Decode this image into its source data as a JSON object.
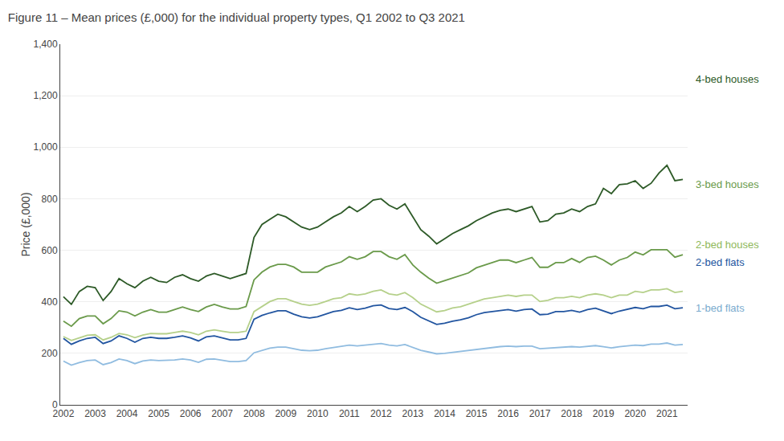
{
  "chart_data": {
    "type": "line",
    "title": "Figure 11 – Mean prices (£,000) for the individual property types, Q1 2002 to Q3 2021",
    "ylabel": "Price (£,000)",
    "x": [
      2002,
      2002.25,
      2002.5,
      2002.75,
      2003,
      2003.25,
      2003.5,
      2003.75,
      2004,
      2004.25,
      2004.5,
      2004.75,
      2005,
      2005.25,
      2005.5,
      2005.75,
      2006,
      2006.25,
      2006.5,
      2006.75,
      2007,
      2007.25,
      2007.5,
      2007.75,
      2008,
      2008.25,
      2008.5,
      2008.75,
      2009,
      2009.25,
      2009.5,
      2009.75,
      2010,
      2010.25,
      2010.5,
      2010.75,
      2011,
      2011.25,
      2011.5,
      2011.75,
      2012,
      2012.25,
      2012.5,
      2012.75,
      2013,
      2013.25,
      2013.5,
      2013.75,
      2014,
      2014.25,
      2014.5,
      2014.75,
      2015,
      2015.25,
      2015.5,
      2015.75,
      2016,
      2016.25,
      2016.5,
      2016.75,
      2017,
      2017.25,
      2017.5,
      2017.75,
      2018,
      2018.25,
      2018.5,
      2018.75,
      2019,
      2019.25,
      2019.5,
      2019.75,
      2020,
      2020.25,
      2020.5,
      2020.75,
      2021,
      2021.25,
      2021.5
    ],
    "series": [
      {
        "name": "1-bed flats",
        "color": "#90bce0",
        "values": [
          170,
          154,
          164,
          172,
          174,
          156,
          164,
          178,
          172,
          160,
          170,
          174,
          172,
          172,
          174,
          178,
          174,
          165,
          177,
          178,
          174,
          168,
          168,
          172,
          202,
          212,
          220,
          224,
          224,
          218,
          212,
          210,
          212,
          218,
          222,
          226,
          232,
          229,
          232,
          236,
          238,
          232,
          229,
          234,
          224,
          212,
          205,
          198,
          200,
          204,
          208,
          212,
          216,
          220,
          224,
          226,
          228,
          226,
          228,
          228,
          218,
          220,
          224,
          224,
          226,
          224,
          228,
          230,
          226,
          221,
          226,
          228,
          232,
          230,
          236,
          236,
          240,
          232,
          234
        ]
      },
      {
        "name": "2-bed flats",
        "color": "#2255a0",
        "values": [
          258,
          235,
          248,
          258,
          262,
          238,
          248,
          268,
          258,
          243,
          258,
          262,
          258,
          258,
          262,
          268,
          260,
          248,
          264,
          268,
          260,
          252,
          252,
          258,
          332,
          347,
          357,
          365,
          365,
          352,
          342,
          337,
          342,
          352,
          362,
          367,
          377,
          370,
          375,
          385,
          388,
          374,
          370,
          378,
          362,
          340,
          327,
          312,
          317,
          325,
          330,
          338,
          350,
          358,
          362,
          365,
          370,
          364,
          370,
          372,
          350,
          352,
          362,
          362,
          367,
          360,
          370,
          375,
          364,
          354,
          364,
          370,
          378,
          373,
          382,
          382,
          387,
          373,
          377
        ]
      },
      {
        "name": "2-bed houses",
        "color": "#b5d08a",
        "values": [
          265,
          250,
          260,
          270,
          272,
          252,
          262,
          277,
          272,
          261,
          271,
          277,
          276,
          276,
          281,
          286,
          281,
          272,
          286,
          291,
          286,
          281,
          281,
          286,
          362,
          381,
          401,
          412,
          412,
          401,
          391,
          386,
          391,
          401,
          412,
          416,
          431,
          426,
          431,
          441,
          446,
          431,
          426,
          436,
          416,
          391,
          376,
          361,
          366,
          376,
          381,
          391,
          401,
          411,
          416,
          421,
          426,
          421,
          426,
          426,
          401,
          406,
          416,
          416,
          421,
          416,
          426,
          431,
          426,
          416,
          426,
          426,
          441,
          436,
          446,
          446,
          451,
          436,
          441
        ]
      },
      {
        "name": "3-bed houses",
        "color": "#6a9a4a",
        "values": [
          325,
          305,
          335,
          345,
          345,
          315,
          335,
          365,
          360,
          345,
          360,
          370,
          360,
          360,
          370,
          380,
          370,
          362,
          380,
          390,
          380,
          372,
          372,
          382,
          485,
          515,
          535,
          545,
          545,
          535,
          515,
          515,
          515,
          535,
          545,
          555,
          575,
          565,
          575,
          595,
          595,
          575,
          565,
          583,
          543,
          515,
          492,
          472,
          482,
          492,
          502,
          512,
          532,
          542,
          552,
          562,
          562,
          552,
          562,
          572,
          534,
          534,
          552,
          552,
          568,
          553,
          572,
          577,
          562,
          543,
          562,
          572,
          593,
          582,
          602,
          602,
          602,
          573,
          583
        ]
      },
      {
        "name": "4-bed houses",
        "color": "#2d5a27",
        "values": [
          420,
          390,
          440,
          460,
          455,
          405,
          440,
          490,
          470,
          455,
          480,
          495,
          480,
          475,
          495,
          505,
          490,
          480,
          500,
          510,
          500,
          490,
          500,
          510,
          650,
          700,
          720,
          740,
          730,
          710,
          690,
          680,
          690,
          710,
          730,
          745,
          770,
          750,
          770,
          795,
          800,
          775,
          760,
          780,
          730,
          680,
          655,
          625,
          645,
          665,
          680,
          695,
          715,
          730,
          745,
          755,
          760,
          750,
          760,
          770,
          710,
          715,
          740,
          745,
          760,
          750,
          770,
          780,
          840,
          820,
          855,
          858,
          870,
          840,
          860,
          900,
          930,
          870,
          875
        ]
      }
    ],
    "annotations": [
      {
        "text": "4-bed houses",
        "y": 1265,
        "color": "#2d5a27"
      },
      {
        "text": "3-bed houses",
        "y": 855,
        "color": "#6a9a4a"
      },
      {
        "text": "2-bed houses",
        "y": 622,
        "color": "#8fb85a"
      },
      {
        "text": "2-bed flats",
        "y": 555,
        "color": "#2255a0"
      },
      {
        "text": "1-bed flats",
        "y": 375,
        "color": "#7aabce"
      }
    ],
    "xlim": [
      2001.9,
      2021.65
    ],
    "xticks": [
      2002,
      2003,
      2004,
      2005,
      2006,
      2007,
      2008,
      2009,
      2010,
      2011,
      2012,
      2013,
      2014,
      2015,
      2016,
      2017,
      2018,
      2019,
      2020,
      2021
    ],
    "ylim": [
      0,
      1400
    ],
    "yticks": [
      0,
      200,
      400,
      600,
      800,
      {
        "value": 1000,
        "label": "1,000"
      },
      {
        "value": 1200,
        "label": "1,200"
      },
      {
        "value": 1400,
        "label": "1,400"
      }
    ],
    "grid": "y"
  }
}
